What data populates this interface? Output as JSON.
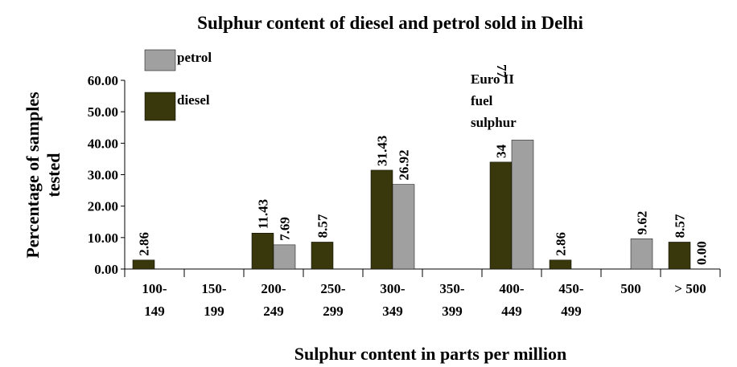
{
  "chart_data": {
    "type": "bar",
    "title": "Sulphur content of diesel and petrol sold in Delhi",
    "x_label": "Sulphur content in parts per million",
    "y_label": [
      "Percentage of samples",
      "tested"
    ],
    "categories": [
      "100-\n149",
      "150-\n199",
      "200-\n249",
      "250-\n299",
      "300-\n349",
      "350-\n399",
      "400-\n449",
      "450-\n499",
      "500",
      "> 500"
    ],
    "series": [
      {
        "name": "diesel",
        "color": "#38380c",
        "values": [
          2.86,
          null,
          11.43,
          8.57,
          31.43,
          null,
          34,
          2.86,
          null,
          8.57
        ],
        "value_labels": [
          "2.86",
          null,
          "11.43",
          "8.57",
          "31.43",
          null,
          "34",
          "2.86",
          null,
          "8.57"
        ]
      },
      {
        "name": "petrol",
        "color": "#a0a0a0",
        "values": [
          null,
          null,
          7.69,
          null,
          26.92,
          null,
          41,
          null,
          9.62,
          0
        ],
        "value_labels": [
          null,
          null,
          "7.69",
          null,
          "26.92",
          null,
          null,
          null,
          "9.62",
          "0.00"
        ]
      }
    ],
    "annotations": [
      [
        "Euro II",
        "fuel",
        "sulphur"
      ],
      "77"
    ],
    "ylim": [
      0,
      60
    ],
    "yticks": [
      {
        "value": 0,
        "label": "0.00"
      },
      {
        "value": 10,
        "label": "10.00"
      },
      {
        "value": 20,
        "label": "20.00"
      },
      {
        "value": 30,
        "label": "30.00"
      },
      {
        "value": 40,
        "label": "40.00"
      },
      {
        "value": 50,
        "label": "50.00"
      },
      {
        "value": 60,
        "label": "60.00"
      }
    ]
  }
}
